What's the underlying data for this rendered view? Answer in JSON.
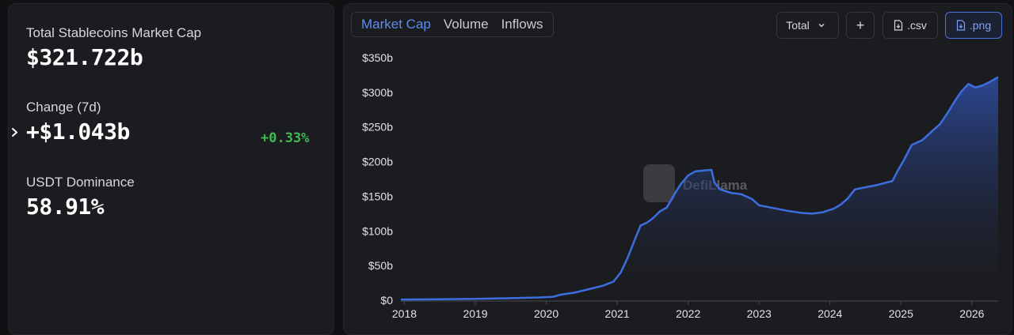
{
  "stats": {
    "market_cap_label": "Total Stablecoins Market Cap",
    "market_cap_value": "$321.722b",
    "change_label": "Change (7d)",
    "change_value": "+$1.043b",
    "change_pct": "+0.33%",
    "dominance_label": "USDT Dominance",
    "dominance_value": "58.91%"
  },
  "tabs": [
    {
      "label": "Market Cap",
      "active": true
    },
    {
      "label": "Volume",
      "active": false
    },
    {
      "label": "Inflows",
      "active": false
    }
  ],
  "controls": {
    "total_label": "Total",
    "add_label": "+",
    "csv_label": ".csv",
    "png_label": ".png"
  },
  "watermark": "DefiLlama",
  "colors": {
    "accent": "#5b8def",
    "line": "#3d6ee0",
    "positive": "#3fb950"
  },
  "chart_data": {
    "type": "area",
    "title": "",
    "xlabel": "",
    "ylabel": "",
    "x_ticks": [
      "2018",
      "2019",
      "2020",
      "2021",
      "2022",
      "2023",
      "2024",
      "2025",
      "2026"
    ],
    "y_ticks": [
      "$0",
      "$50b",
      "$100b",
      "$150b",
      "$200b",
      "$250b",
      "$300b",
      "$350b"
    ],
    "ylim": [
      0,
      350
    ],
    "xlim": [
      2017.95,
      2026.37
    ],
    "grid": false,
    "series": [
      {
        "values_unit": "billions USD",
        "x": [
          2017.95,
          2018.5,
          2019.0,
          2019.5,
          2019.9,
          2020.1,
          2020.2,
          2020.4,
          2020.6,
          2020.8,
          2020.95,
          2021.05,
          2021.15,
          2021.25,
          2021.33,
          2021.42,
          2021.5,
          2021.6,
          2021.7,
          2021.8,
          2021.9,
          2022.0,
          2022.1,
          2022.2,
          2022.3,
          2022.33,
          2022.37,
          2022.45,
          2022.6,
          2022.75,
          2022.9,
          2023.0,
          2023.2,
          2023.4,
          2023.6,
          2023.75,
          2023.9,
          2024.05,
          2024.15,
          2024.25,
          2024.35,
          2024.5,
          2024.65,
          2024.8,
          2024.88,
          2024.95,
          2025.05,
          2025.15,
          2025.3,
          2025.45,
          2025.55,
          2025.65,
          2025.75,
          2025.85,
          2025.95,
          2026.05,
          2026.15,
          2026.25,
          2026.37
        ],
        "values": [
          1,
          1.5,
          2,
          3,
          4,
          5,
          8,
          11,
          16,
          21,
          27,
          40,
          62,
          88,
          108,
          112,
          118,
          128,
          134,
          152,
          168,
          180,
          186,
          187,
          188,
          188,
          170,
          160,
          155,
          153,
          146,
          137,
          133,
          129,
          126,
          125,
          127,
          132,
          138,
          147,
          160,
          163,
          166,
          170,
          172,
          186,
          204,
          224,
          231,
          245,
          254,
          269,
          286,
          301,
          312,
          307,
          310,
          315,
          322
        ]
      }
    ]
  }
}
